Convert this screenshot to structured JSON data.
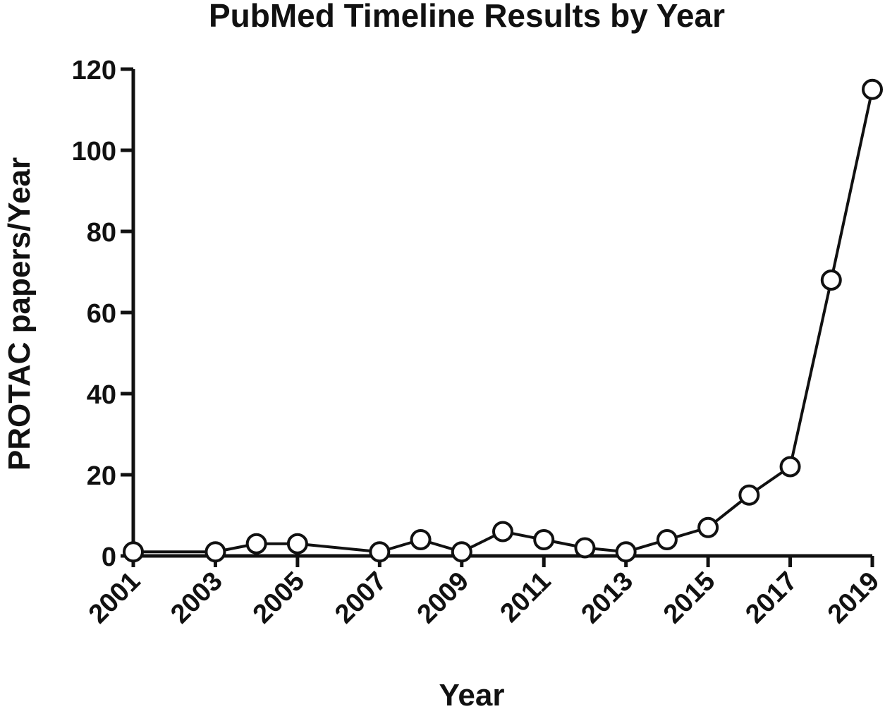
{
  "chart_data": {
    "type": "line",
    "title": "PubMed Timeline Results by Year",
    "xlabel": "Year",
    "ylabel": "PROTAC papers/Year",
    "xlim": [
      2001,
      2019
    ],
    "ylim": [
      0,
      120
    ],
    "yticks": [
      0,
      20,
      40,
      60,
      80,
      100,
      120
    ],
    "xticks": [
      "2001",
      "2003",
      "2005",
      "2007",
      "2009",
      "2011",
      "2013",
      "2015",
      "2017",
      "2019"
    ],
    "grid": false,
    "legend": "none",
    "series": [
      {
        "marker": "open-circle",
        "color": "#111111",
        "x": [
          2001,
          2003,
          2004,
          2005,
          2007,
          2008,
          2009,
          2010,
          2011,
          2012,
          2013,
          2014,
          2015,
          2016,
          2017,
          2018,
          2019
        ],
        "values": [
          1,
          1,
          3,
          3,
          1,
          4,
          1,
          6,
          4,
          2,
          1,
          4,
          7,
          15,
          22,
          68,
          115
        ]
      }
    ]
  }
}
